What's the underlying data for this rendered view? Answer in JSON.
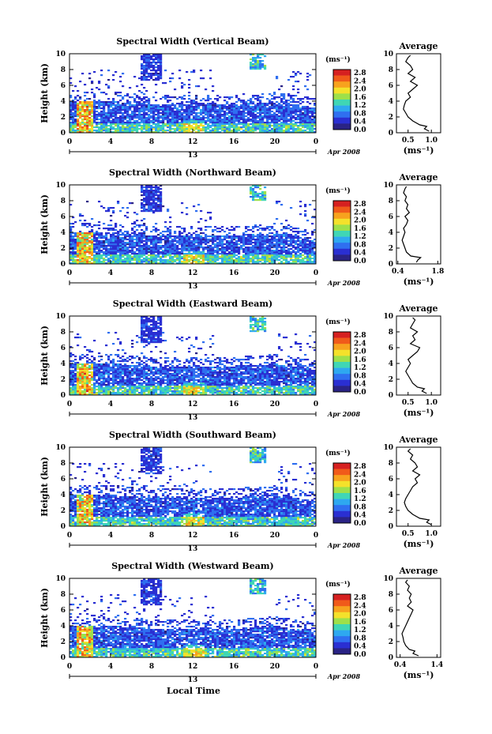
{
  "figure": {
    "bottom_label": "Local Time",
    "day_label": "13",
    "month_label": "Apr 2008"
  },
  "colorbar": {
    "unit": "(ms⁻¹)",
    "ticks": [
      "2.8",
      "2.4",
      "2.0",
      "1.6",
      "1.2",
      "0.8",
      "0.4",
      "0.0"
    ],
    "colors": [
      "#d62020",
      "#f05a1a",
      "#f7a21e",
      "#f4e12b",
      "#9ee04a",
      "#3fd6b5",
      "#2ea8f0",
      "#2f6ff0",
      "#2a2fd2",
      "#2a2385"
    ]
  },
  "chart_data": [
    {
      "type": "heatmap",
      "title": "Spectral Width (Vertical Beam)",
      "xlabel": "",
      "ylabel": "Height (km)",
      "x_ticks": [
        "0",
        "4",
        "8",
        "12",
        "16",
        "20",
        "0"
      ],
      "xlim": [
        0,
        24
      ],
      "y_ticks": [
        "0",
        "2",
        "4",
        "6",
        "8",
        "10"
      ],
      "ylim": [
        0,
        10
      ],
      "average": {
        "title": "Average",
        "xlabel": "(ms⁻¹)",
        "x_ticks": [
          "0.5",
          "1.0"
        ],
        "xlim": [
          0.25,
          1.2
        ],
        "height": [
          0.2,
          0.5,
          0.8,
          1.0,
          1.5,
          2.0,
          2.5,
          3.0,
          3.5,
          4.0,
          4.5,
          5.0,
          5.5,
          6.0,
          6.5,
          7.0,
          7.5,
          8.0,
          8.5,
          9.0,
          9.5,
          9.8
        ],
        "width": [
          0.95,
          0.85,
          0.9,
          0.75,
          0.6,
          0.5,
          0.45,
          0.4,
          0.42,
          0.45,
          0.55,
          0.5,
          0.6,
          0.7,
          0.55,
          0.65,
          0.5,
          0.6,
          0.55,
          0.45,
          0.5,
          0.55
        ]
      }
    },
    {
      "type": "heatmap",
      "title": "Spectral Width (Northward Beam)",
      "xlabel": "",
      "ylabel": "Height (km)",
      "x_ticks": [
        "0",
        "4",
        "8",
        "12",
        "16",
        "20",
        "0"
      ],
      "xlim": [
        0,
        24
      ],
      "y_ticks": [
        "0",
        "2",
        "4",
        "6",
        "8",
        "10"
      ],
      "ylim": [
        0,
        10
      ],
      "average": {
        "title": "Average",
        "xlabel": "(ms⁻¹)",
        "x_ticks": [
          "0.4",
          "1.8"
        ],
        "xlim": [
          0.35,
          1.9
        ],
        "height": [
          0.2,
          0.5,
          0.8,
          1.0,
          1.5,
          2.0,
          2.5,
          3.0,
          3.5,
          4.0,
          4.5,
          5.0,
          5.5,
          6.0,
          6.5,
          7.0,
          7.5,
          8.0,
          8.5,
          9.0,
          9.5,
          9.8
        ],
        "width": [
          1.05,
          1.1,
          1.2,
          0.85,
          0.7,
          0.65,
          0.6,
          0.55,
          0.6,
          0.65,
          0.6,
          0.7,
          0.75,
          0.65,
          0.8,
          0.7,
          0.75,
          0.65,
          0.7,
          0.6,
          0.65,
          0.7
        ]
      }
    },
    {
      "type": "heatmap",
      "title": "Spectral Width (Eastward Beam)",
      "xlabel": "",
      "ylabel": "Height (km)",
      "x_ticks": [
        "0",
        "4",
        "8",
        "12",
        "16",
        "20",
        "0"
      ],
      "xlim": [
        0,
        24
      ],
      "y_ticks": [
        "0",
        "2",
        "4",
        "6",
        "8",
        "10"
      ],
      "ylim": [
        0,
        10
      ],
      "average": {
        "title": "Average",
        "xlabel": "(ms⁻¹)",
        "x_ticks": [
          "0.5",
          "1.0"
        ],
        "xlim": [
          0.25,
          1.2
        ],
        "height": [
          0.2,
          0.5,
          0.8,
          1.0,
          1.5,
          2.0,
          2.5,
          3.0,
          3.5,
          4.0,
          4.5,
          5.0,
          5.5,
          6.0,
          6.5,
          7.0,
          7.5,
          8.0,
          8.5,
          9.0,
          9.5,
          9.8
        ],
        "width": [
          0.9,
          0.8,
          0.85,
          0.7,
          0.6,
          0.55,
          0.5,
          0.45,
          0.5,
          0.55,
          0.5,
          0.6,
          0.7,
          0.75,
          0.55,
          0.65,
          0.6,
          0.7,
          0.55,
          0.6,
          0.65,
          0.6
        ]
      }
    },
    {
      "type": "heatmap",
      "title": "Spectral Width (Southward Beam)",
      "xlabel": "",
      "ylabel": "Height (km)",
      "x_ticks": [
        "0",
        "4",
        "8",
        "12",
        "16",
        "20",
        "0"
      ],
      "xlim": [
        0,
        24
      ],
      "y_ticks": [
        "0",
        "2",
        "4",
        "6",
        "8",
        "10"
      ],
      "ylim": [
        0,
        10
      ],
      "average": {
        "title": "Average",
        "xlabel": "(ms⁻¹)",
        "x_ticks": [
          "0.5",
          "1.0"
        ],
        "xlim": [
          0.25,
          1.2
        ],
        "height": [
          0.2,
          0.5,
          0.8,
          1.0,
          1.5,
          2.0,
          2.5,
          3.0,
          3.5,
          4.0,
          4.5,
          5.0,
          5.5,
          6.0,
          6.5,
          7.0,
          7.5,
          8.0,
          8.5,
          9.0,
          9.5,
          9.8
        ],
        "width": [
          1.0,
          0.9,
          0.95,
          0.75,
          0.6,
          0.5,
          0.45,
          0.42,
          0.45,
          0.5,
          0.55,
          0.6,
          0.7,
          0.65,
          0.75,
          0.6,
          0.7,
          0.65,
          0.55,
          0.6,
          0.5,
          0.55
        ]
      }
    },
    {
      "type": "heatmap",
      "title": "Spectral Width (Westward Beam)",
      "xlabel": "Local Time",
      "ylabel": "Height (km)",
      "x_ticks": [
        "0",
        "4",
        "8",
        "12",
        "16",
        "20",
        "0"
      ],
      "xlim": [
        0,
        24
      ],
      "y_ticks": [
        "0",
        "2",
        "4",
        "6",
        "8",
        "10"
      ],
      "ylim": [
        0,
        10
      ],
      "average": {
        "title": "Average",
        "xlabel": "(ms⁻¹)",
        "x_ticks": [
          "0.4",
          "1.4"
        ],
        "xlim": [
          0.3,
          1.5
        ],
        "height": [
          0.2,
          0.5,
          0.8,
          1.0,
          1.5,
          2.0,
          2.5,
          3.0,
          3.5,
          4.0,
          4.5,
          5.0,
          5.5,
          6.0,
          6.5,
          7.0,
          7.5,
          8.0,
          8.5,
          9.0,
          9.5,
          9.8
        ],
        "width": [
          0.9,
          0.75,
          0.8,
          0.65,
          0.55,
          0.5,
          0.48,
          0.45,
          0.5,
          0.55,
          0.6,
          0.65,
          0.7,
          0.75,
          0.6,
          0.7,
          0.65,
          0.7,
          0.6,
          0.65,
          0.55,
          0.6
        ]
      }
    }
  ]
}
